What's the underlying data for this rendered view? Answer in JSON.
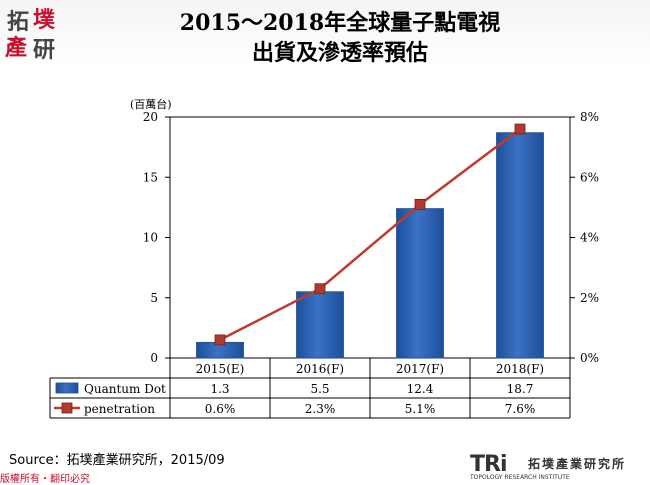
{
  "header": {
    "logo_chars": [
      "拓",
      "墣",
      "產",
      "研"
    ],
    "title_line1": "2015～2018年全球量子點電視",
    "title_line2": "出貨及滲透率預估"
  },
  "colors": {
    "bar": "#3a72c4",
    "bar_dark": "#1d4f9a",
    "line": "#c0392b",
    "marker": "#b03a2e",
    "accent_red": "#c8102e"
  },
  "chart_data": {
    "type": "bar",
    "categories": [
      "2015(E)",
      "2016(F)",
      "2017(F)",
      "2018(F)"
    ],
    "y_unit_label": "(百萬台)",
    "ylim": [
      0,
      20
    ],
    "y_ticks": [
      0,
      5,
      10,
      15,
      20
    ],
    "y2lim": [
      0,
      0.08
    ],
    "y2_ticks": [
      0,
      0.02,
      0.04,
      0.06,
      0.08
    ],
    "y2_tick_labels": [
      "0%",
      "2%",
      "4%",
      "6%",
      "8%"
    ],
    "series": [
      {
        "name": "Quantum Dot",
        "type": "bar",
        "axis": "left",
        "values": [
          1.3,
          5.5,
          12.4,
          18.7
        ],
        "labels": [
          "1.3",
          "5.5",
          "12.4",
          "18.7"
        ]
      },
      {
        "name": "penetration",
        "type": "line",
        "axis": "right",
        "values": [
          0.006,
          0.023,
          0.051,
          0.076
        ],
        "labels": [
          "0.6%",
          "2.3%",
          "5.1%",
          "7.6%"
        ]
      }
    ],
    "legend": "table-below"
  },
  "footer": {
    "source": "Source：拓墣產業研究所，2015/09",
    "copyright": "版權所有・翻印必究",
    "logo_tri": "TRi",
    "logo_name": "拓墣產業研究所",
    "logo_sub": "TOPOLOGY RESEARCH INSTITUTE"
  }
}
